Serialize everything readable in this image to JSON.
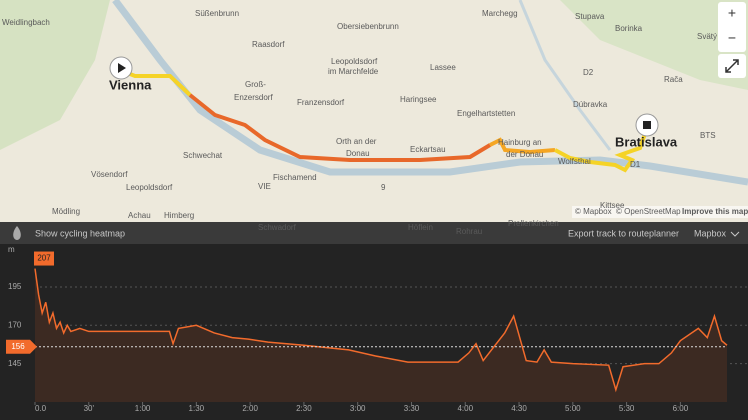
{
  "map": {
    "labels": [
      "Weidlingbach",
      "Süßenbrunn",
      "Obersiebenbrunn",
      "Marchegg",
      "Stupava",
      "Borinka",
      "Svätý",
      "Raasdorf",
      "Leopoldsdorf",
      "im Marchfelde",
      "Lassee",
      "Groß-",
      "Enzersdorf",
      "Vienna",
      "Franzensdorf",
      "Haringsee",
      "Engelhartstetten",
      "Dúbravka",
      "Rača",
      "BTS",
      "Bratislava",
      "Schwechat",
      "Orth an der",
      "Donau",
      "Eckartsau",
      "Hainburg an",
      "der Donau",
      "Wolfsthal",
      "Vösendorf",
      "Fischamend",
      "VIE",
      "Leopoldsdorf",
      "Mödling",
      "Achau",
      "Himberg",
      "Schwadorf",
      "Höflein",
      "Rohrau",
      "Prellenkirchen",
      "Kittsee",
      "D2",
      "D1",
      "9"
    ],
    "attribution": [
      "© Mapbox",
      "© OpenStreetMap",
      "Improve this map"
    ],
    "zoom": [
      "+",
      "−"
    ]
  },
  "toolbar": {
    "heatmap": "Show cycling heatmap",
    "export": "Export track to routeplanner",
    "style": "Mapbox"
  },
  "chart_data": {
    "type": "line",
    "y_unit": "m",
    "x": [
      0,
      2,
      4,
      6,
      8,
      10,
      12,
      14,
      16,
      18,
      20,
      25,
      30,
      45,
      60,
      75,
      77,
      80,
      90,
      100,
      110,
      119,
      130,
      150,
      175,
      190,
      208,
      236,
      242,
      246,
      250,
      262,
      267,
      274,
      280,
      284,
      288,
      300,
      320,
      324,
      328,
      340,
      348,
      355,
      360,
      370,
      375,
      379,
      383,
      386
    ],
    "series": [
      {
        "color": "#f26b2c",
        "values": [
          207,
          190,
          178,
          185,
          172,
          178,
          168,
          172,
          165,
          170,
          166,
          168,
          166,
          166,
          166,
          166,
          158,
          168,
          170,
          165,
          162,
          161,
          159,
          157,
          154,
          150,
          146,
          146,
          152,
          158,
          147,
          165,
          176,
          147,
          146,
          154,
          146,
          145,
          144,
          128,
          143,
          145,
          145,
          152,
          160,
          168,
          162,
          176,
          160,
          157
        ]
      }
    ],
    "xlim": [
      0,
      386
    ],
    "ylim": [
      120,
      223
    ],
    "xticks": [
      {
        "value": 0,
        "label": "0.0"
      },
      {
        "value": 30,
        "label": "30'"
      },
      {
        "value": 60,
        "label": "1:00"
      },
      {
        "value": 90,
        "label": "1:30"
      },
      {
        "value": 120,
        "label": "2:00"
      },
      {
        "value": 150,
        "label": "2:30"
      },
      {
        "value": 180,
        "label": "3:00"
      },
      {
        "value": 210,
        "label": "3:30"
      },
      {
        "value": 240,
        "label": "4:00"
      },
      {
        "value": 270,
        "label": "4:30"
      },
      {
        "value": 300,
        "label": "5:00"
      },
      {
        "value": 330,
        "label": "5:30"
      },
      {
        "value": 360,
        "label": "6:00"
      }
    ],
    "yticks": [
      145,
      170,
      195
    ],
    "max": 207,
    "mean": 156
  }
}
